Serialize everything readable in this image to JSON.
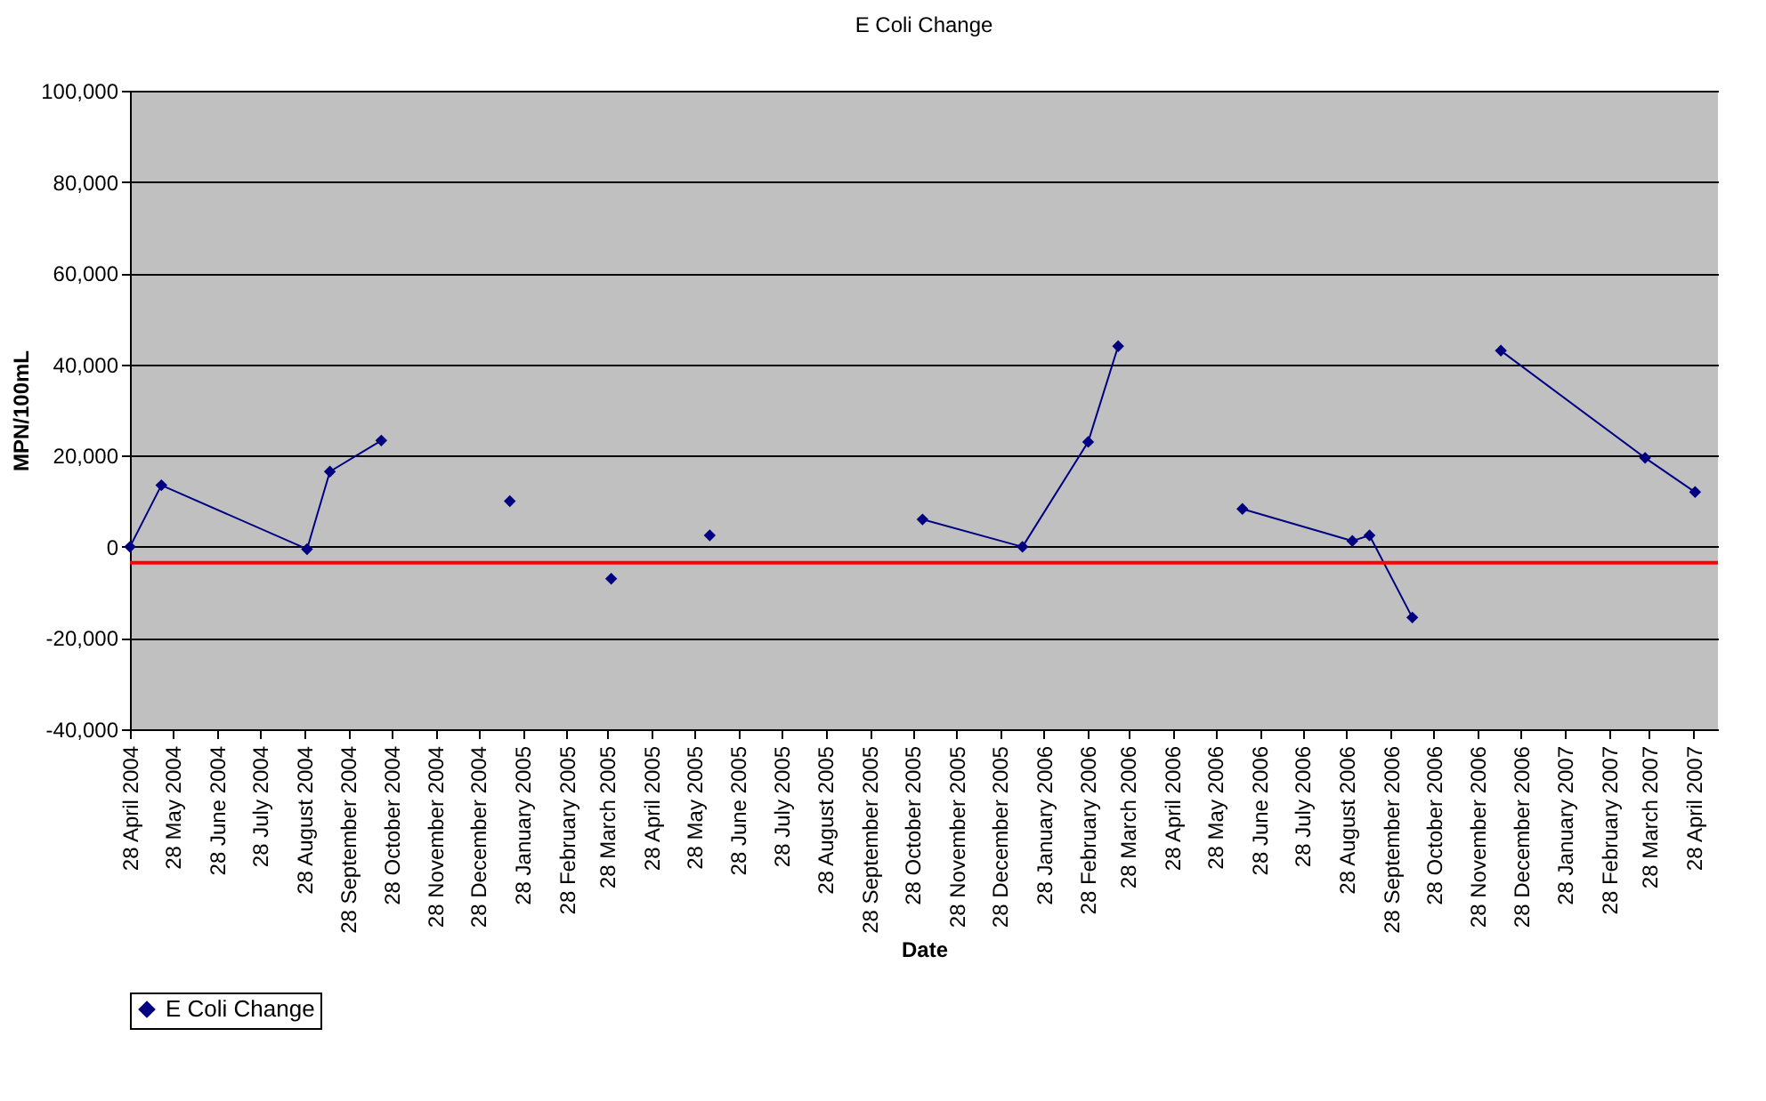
{
  "chart_data": {
    "type": "line",
    "title": "E Coli Change",
    "xlabel": "Date",
    "ylabel": "MPN/100mL",
    "x": [
      "2004-04-28",
      "2004-05-20",
      "2004-08-30",
      "2004-09-15",
      "2004-10-21",
      "2004-12-05",
      "2005-01-19",
      "2005-02-25",
      "2005-03-31",
      "2005-05-05",
      "2005-06-08",
      "2005-08-10",
      "2005-11-04",
      "2006-01-13",
      "2006-02-28",
      "2006-03-21",
      "2006-04-28",
      "2006-06-16",
      "2006-09-01",
      "2006-09-13",
      "2006-10-13",
      "2006-11-10",
      "2006-12-14",
      "2007-03-25",
      "2007-04-29"
    ],
    "series": [
      {
        "name": "E Coli Change",
        "color": "#000080",
        "values": [
          0,
          13500,
          -500,
          16500,
          23300,
          null,
          10000,
          null,
          -7000,
          null,
          2500,
          null,
          6000,
          0,
          23000,
          44000,
          null,
          8300,
          1300,
          2500,
          -15500,
          null,
          43000,
          19500,
          12000
        ]
      }
    ],
    "xlim": [
      "2004-04-28",
      "2007-05-15"
    ],
    "xticks": [
      {
        "value": "2004-04-28",
        "label": "28 April 2004"
      },
      {
        "value": "2004-05-28",
        "label": "28 May 2004"
      },
      {
        "value": "2004-06-28",
        "label": "28 June 2004"
      },
      {
        "value": "2004-07-28",
        "label": "28 July 2004"
      },
      {
        "value": "2004-08-28",
        "label": "28 August 2004"
      },
      {
        "value": "2004-09-28",
        "label": "28 September 2004"
      },
      {
        "value": "2004-10-28",
        "label": "28 October 2004"
      },
      {
        "value": "2004-11-28",
        "label": "28 November 2004"
      },
      {
        "value": "2004-12-28",
        "label": "28 December 2004"
      },
      {
        "value": "2005-01-28",
        "label": "28 January 2005"
      },
      {
        "value": "2005-02-28",
        "label": "28 February 2005"
      },
      {
        "value": "2005-03-28",
        "label": "28 March 2005"
      },
      {
        "value": "2005-04-28",
        "label": "28 April 2005"
      },
      {
        "value": "2005-05-28",
        "label": "28 May 2005"
      },
      {
        "value": "2005-06-28",
        "label": "28 June 2005"
      },
      {
        "value": "2005-07-28",
        "label": "28 July 2005"
      },
      {
        "value": "2005-08-28",
        "label": "28 August 2005"
      },
      {
        "value": "2005-09-28",
        "label": "28 September 2005"
      },
      {
        "value": "2005-10-28",
        "label": "28 October 2005"
      },
      {
        "value": "2005-11-28",
        "label": "28 November 2005"
      },
      {
        "value": "2005-12-28",
        "label": "28 December 2005"
      },
      {
        "value": "2006-01-28",
        "label": "28 January 2006"
      },
      {
        "value": "2006-02-28",
        "label": "28 February 2006"
      },
      {
        "value": "2006-03-28",
        "label": "28 March 2006"
      },
      {
        "value": "2006-04-28",
        "label": "28 April 2006"
      },
      {
        "value": "2006-05-28",
        "label": "28 May 2006"
      },
      {
        "value": "2006-06-28",
        "label": "28 June 2006"
      },
      {
        "value": "2006-07-28",
        "label": "28 July 2006"
      },
      {
        "value": "2006-08-28",
        "label": "28 August 2006"
      },
      {
        "value": "2006-09-28",
        "label": "28 September 2006"
      },
      {
        "value": "2006-10-28",
        "label": "28 October 2006"
      },
      {
        "value": "2006-11-28",
        "label": "28 November 2006"
      },
      {
        "value": "2006-12-28",
        "label": "28 December 2006"
      },
      {
        "value": "2007-01-28",
        "label": "28 January 2007"
      },
      {
        "value": "2007-02-28",
        "label": "28 February 2007"
      },
      {
        "value": "2007-03-28",
        "label": "28 March 2007"
      },
      {
        "value": "2007-04-28",
        "label": "28 April 2007"
      }
    ],
    "ylim": [
      -40000,
      100000
    ],
    "yticks": [
      {
        "value": -40000,
        "label": "-40,000"
      },
      {
        "value": -20000,
        "label": "-20,000"
      },
      0,
      {
        "value": 20000,
        "label": "20,000"
      },
      {
        "value": 40000,
        "label": "40,000"
      },
      {
        "value": 60000,
        "label": "60,000"
      },
      {
        "value": 80000,
        "label": "80,000"
      },
      {
        "value": 100000,
        "label": "100,000"
      }
    ],
    "ref_lines": [
      {
        "axis": "y",
        "value": -3500,
        "color": "#ff0000"
      }
    ],
    "grid": "y",
    "legend": "bottom",
    "marker": "diamond",
    "line_style": "solid"
  }
}
